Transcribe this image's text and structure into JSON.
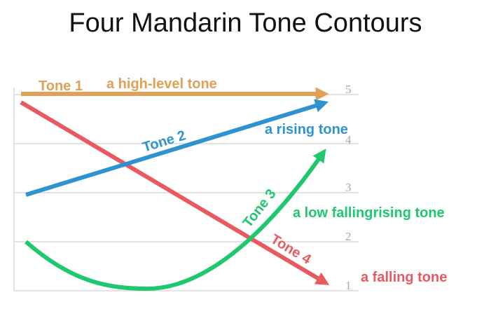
{
  "title": "Four Mandarin Tone Contours",
  "scale_labels": [
    "1",
    "2",
    "3",
    "4",
    "5"
  ],
  "tones": [
    {
      "name": "Tone 1",
      "description": "a high-level tone",
      "contour": "5-5",
      "color": "#E0A055"
    },
    {
      "name": "Tone 2",
      "description": "a rising tone",
      "contour": "3-5",
      "color": "#2F93D1"
    },
    {
      "name": "Tone 3",
      "description": "a low fallingrising tone",
      "contour": "2-1-4",
      "color": "#1EC86E"
    },
    {
      "name": "Tone 4",
      "description": "a falling tone",
      "contour": "5-1",
      "color": "#E85A5F"
    }
  ],
  "colors": {
    "grid": "#d9d9d9",
    "tick": "#a8a8a8",
    "title": "#111111"
  }
}
